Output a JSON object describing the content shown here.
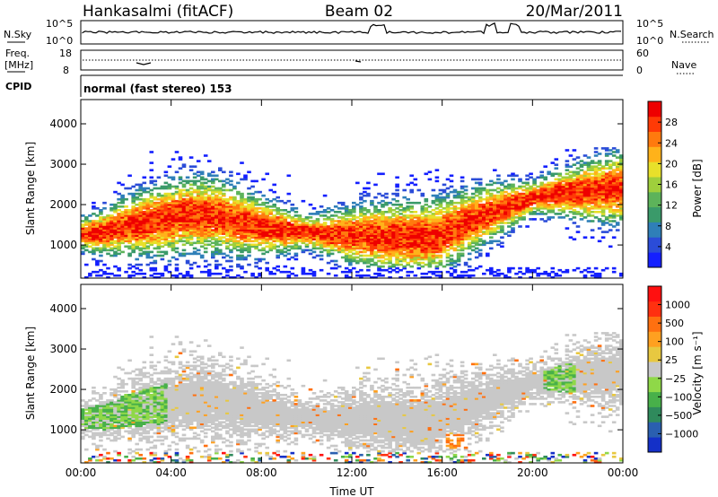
{
  "header": {
    "station": "Hankasalmi (fitACF)",
    "beam": "Beam 02",
    "date": "20/Mar/2011"
  },
  "noise_panel": {
    "left_label": "N.Sky",
    "right_label": "N.Search",
    "left_ticks": [
      "10^5",
      "10^0"
    ],
    "right_ticks": [
      "10^5",
      "10^0"
    ]
  },
  "freq_panel": {
    "left_label_line1": "Freq.",
    "left_label_line2": "[MHz]",
    "left_ticks": [
      "18",
      "8"
    ],
    "right_ticks": [
      "60",
      "0"
    ],
    "right_label": "Nave"
  },
  "cpid_panel": {
    "label": "CPID",
    "text": "normal (fast stereo) 153"
  },
  "chart_data": [
    {
      "type": "heatmap",
      "title": "",
      "xlabel": "Time UT",
      "ylabel": "Slant Range [km]",
      "x_ticks": [
        "00:00",
        "04:00",
        "08:00",
        "12:00",
        "16:00",
        "20:00",
        "00:00"
      ],
      "xlim_hours": [
        0,
        24
      ],
      "y_ticks": [
        1000,
        2000,
        3000,
        4000
      ],
      "ylim": [
        180,
        4600
      ],
      "colorbar": {
        "label": "Power [dB]",
        "ticks": [
          "4",
          "8",
          "12",
          "16",
          "20",
          "24",
          "28"
        ],
        "colors": [
          "#1420ff",
          "#2b4cd8",
          "#2f7fb8",
          "#3a9a6a",
          "#5db35a",
          "#9fcf3c",
          "#e8e02a",
          "#ffb21a",
          "#ff7a0e",
          "#ff3a06",
          "#ee0000"
        ]
      },
      "echo_band": {
        "centre_km": [
          [
            0.0,
            1250
          ],
          [
            1.0,
            1300
          ],
          [
            2.0,
            1450
          ],
          [
            3.0,
            1550
          ],
          [
            4.0,
            1650
          ],
          [
            5.0,
            1750
          ],
          [
            6.0,
            1700
          ],
          [
            7.0,
            1550
          ],
          [
            8.0,
            1450
          ],
          [
            9.0,
            1350
          ],
          [
            10.0,
            1300
          ],
          [
            11.0,
            1250
          ],
          [
            12.0,
            1220
          ],
          [
            13.0,
            1200
          ],
          [
            14.0,
            1180
          ],
          [
            15.0,
            1150
          ],
          [
            16.0,
            1250
          ],
          [
            17.0,
            1500
          ],
          [
            18.0,
            1750
          ],
          [
            19.0,
            1950
          ],
          [
            20.0,
            2150
          ],
          [
            21.0,
            2250
          ],
          [
            22.0,
            2300
          ],
          [
            23.0,
            2350
          ],
          [
            24.0,
            2400
          ]
        ],
        "max_power_db": 29
      }
    },
    {
      "type": "heatmap",
      "title": "",
      "xlabel": "Time UT",
      "ylabel": "Slant Range [km]",
      "x_ticks": [
        "00:00",
        "04:00",
        "08:00",
        "12:00",
        "16:00",
        "20:00",
        "00:00"
      ],
      "xlim_hours": [
        0,
        24
      ],
      "y_ticks": [
        1000,
        2000,
        3000,
        4000
      ],
      "ylim": [
        180,
        4600
      ],
      "colorbar": {
        "label": "Velocity [m s⁻¹]",
        "ticks": [
          "1000",
          "500",
          "100",
          "25",
          "−25",
          "−100",
          "−500",
          "−1000"
        ],
        "colors": [
          "#1430c8",
          "#2a5fb0",
          "#2f8a5c",
          "#48b04a",
          "#8fd848",
          "#c8c8c8",
          "#e8c840",
          "#ffa020",
          "#ff7010",
          "#ff3010",
          "#ff1010"
        ]
      },
      "ground_scatter_colour": "#c8c8c8"
    }
  ]
}
